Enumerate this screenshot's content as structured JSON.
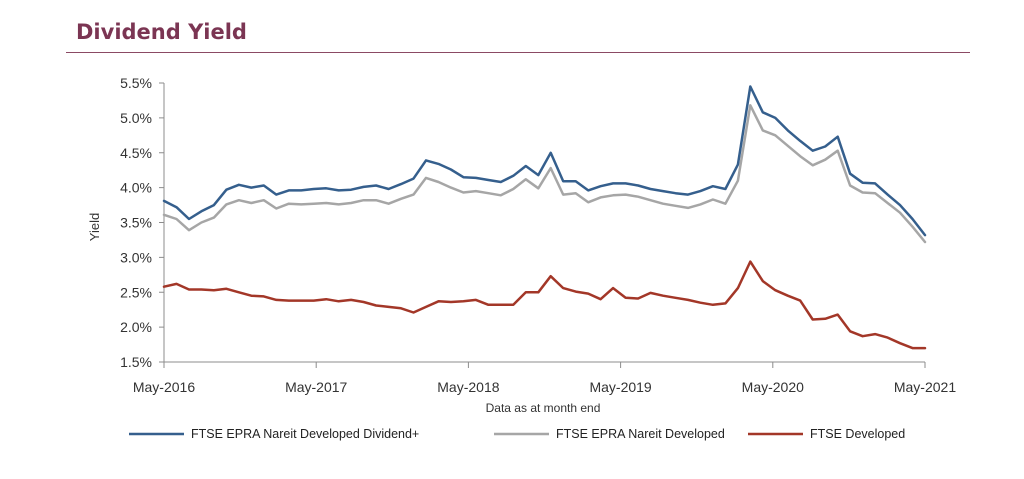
{
  "header": {
    "title": "Dividend Yield"
  },
  "chart_data": {
    "type": "line",
    "title": "Dividend Yield",
    "xlabel": "Data as at month end",
    "ylabel": "Yield",
    "ylim": [
      1.5,
      5.5
    ],
    "yticks": [
      1.5,
      2.0,
      2.5,
      3.0,
      3.5,
      4.0,
      4.5,
      5.0,
      5.5
    ],
    "ytick_labels": [
      "1.5%",
      "2.0%",
      "2.5%",
      "3.0%",
      "3.5%",
      "4.0%",
      "4.5%",
      "5.0%",
      "5.5%"
    ],
    "x_range": [
      "May-2016",
      "May-2021"
    ],
    "xtick_labels": [
      "May-2016",
      "May-2017",
      "May-2018",
      "May-2019",
      "May-2020",
      "May-2021"
    ],
    "grid": false,
    "legend_position": "bottom",
    "series": [
      {
        "name": "FTSE EPRA Nareit Developed Dividend+",
        "color": "#355f8d",
        "values": [
          3.81,
          3.72,
          3.55,
          3.66,
          3.75,
          3.97,
          4.04,
          4.0,
          4.03,
          3.9,
          3.96,
          3.96,
          3.98,
          3.99,
          3.96,
          3.97,
          4.01,
          4.03,
          3.98,
          4.05,
          4.13,
          4.39,
          4.34,
          4.26,
          4.15,
          4.14,
          4.11,
          4.08,
          4.17,
          4.31,
          4.18,
          4.5,
          4.09,
          4.09,
          3.96,
          4.02,
          4.06,
          4.06,
          4.03,
          3.98,
          3.95,
          3.92,
          3.9,
          3.95,
          4.02,
          3.98,
          4.33,
          5.45,
          5.08,
          5.0,
          4.82,
          4.67,
          4.53,
          4.59,
          4.73,
          4.2,
          4.07,
          4.06,
          3.9,
          3.75,
          3.55,
          3.32
        ]
      },
      {
        "name": "FTSE EPRA Nareit Developed",
        "color": "#a6a6a6",
        "values": [
          3.61,
          3.55,
          3.39,
          3.5,
          3.57,
          3.76,
          3.82,
          3.78,
          3.82,
          3.7,
          3.77,
          3.76,
          3.77,
          3.78,
          3.76,
          3.78,
          3.82,
          3.82,
          3.77,
          3.84,
          3.9,
          4.14,
          4.08,
          4.0,
          3.93,
          3.95,
          3.92,
          3.89,
          3.98,
          4.12,
          3.99,
          4.28,
          3.9,
          3.92,
          3.79,
          3.86,
          3.89,
          3.9,
          3.87,
          3.82,
          3.77,
          3.74,
          3.71,
          3.76,
          3.83,
          3.77,
          4.1,
          5.18,
          4.82,
          4.75,
          4.6,
          4.45,
          4.32,
          4.4,
          4.53,
          4.03,
          3.93,
          3.92,
          3.78,
          3.64,
          3.44,
          3.22
        ]
      },
      {
        "name": "FTSE Developed",
        "color": "#a33728",
        "values": [
          2.58,
          2.62,
          2.54,
          2.54,
          2.53,
          2.55,
          2.5,
          2.45,
          2.44,
          2.39,
          2.38,
          2.38,
          2.38,
          2.4,
          2.37,
          2.39,
          2.36,
          2.31,
          2.29,
          2.27,
          2.21,
          2.29,
          2.37,
          2.36,
          2.37,
          2.39,
          2.32,
          2.32,
          2.32,
          2.5,
          2.5,
          2.73,
          2.56,
          2.51,
          2.48,
          2.4,
          2.56,
          2.42,
          2.41,
          2.49,
          2.45,
          2.42,
          2.39,
          2.35,
          2.32,
          2.34,
          2.56,
          2.94,
          2.66,
          2.53,
          2.45,
          2.38,
          2.11,
          2.12,
          2.18,
          1.94,
          1.87,
          1.9,
          1.85,
          1.77,
          1.7,
          1.7
        ]
      }
    ]
  }
}
